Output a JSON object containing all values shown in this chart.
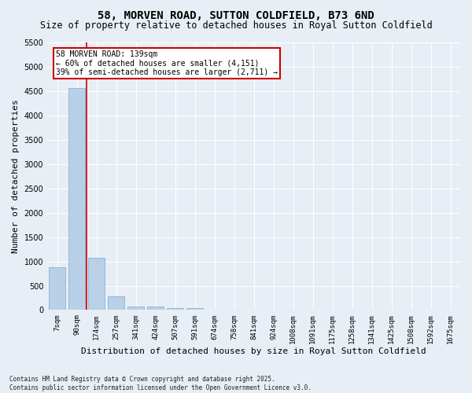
{
  "title": "58, MORVEN ROAD, SUTTON COLDFIELD, B73 6ND",
  "subtitle": "Size of property relative to detached houses in Royal Sutton Coldfield",
  "xlabel": "Distribution of detached houses by size in Royal Sutton Coldfield",
  "ylabel": "Number of detached properties",
  "bar_color": "#b8d0e8",
  "bar_edge_color": "#7aaacf",
  "background_color": "#e8eef5",
  "grid_color": "#ffffff",
  "fig_background": "#e8eef5",
  "categories": [
    "7sqm",
    "90sqm",
    "174sqm",
    "257sqm",
    "341sqm",
    "424sqm",
    "507sqm",
    "591sqm",
    "674sqm",
    "758sqm",
    "841sqm",
    "924sqm",
    "1008sqm",
    "1091sqm",
    "1175sqm",
    "1258sqm",
    "1341sqm",
    "1425sqm",
    "1508sqm",
    "1592sqm",
    "1675sqm"
  ],
  "values": [
    880,
    4570,
    1080,
    280,
    75,
    65,
    45,
    35,
    0,
    0,
    0,
    0,
    0,
    0,
    0,
    0,
    0,
    0,
    0,
    0,
    0
  ],
  "vline_color": "#cc0000",
  "annotation_text": "58 MORVEN ROAD: 139sqm\n← 60% of detached houses are smaller (4,151)\n39% of semi-detached houses are larger (2,711) →",
  "ylim": [
    0,
    5500
  ],
  "yticks": [
    0,
    500,
    1000,
    1500,
    2000,
    2500,
    3000,
    3500,
    4000,
    4500,
    5000,
    5500
  ],
  "footer": "Contains HM Land Registry data © Crown copyright and database right 2025.\nContains public sector information licensed under the Open Government Licence v3.0.",
  "title_fontsize": 10,
  "subtitle_fontsize": 8.5,
  "tick_fontsize": 6.5,
  "ylabel_fontsize": 8,
  "xlabel_fontsize": 8,
  "footer_fontsize": 5.5
}
